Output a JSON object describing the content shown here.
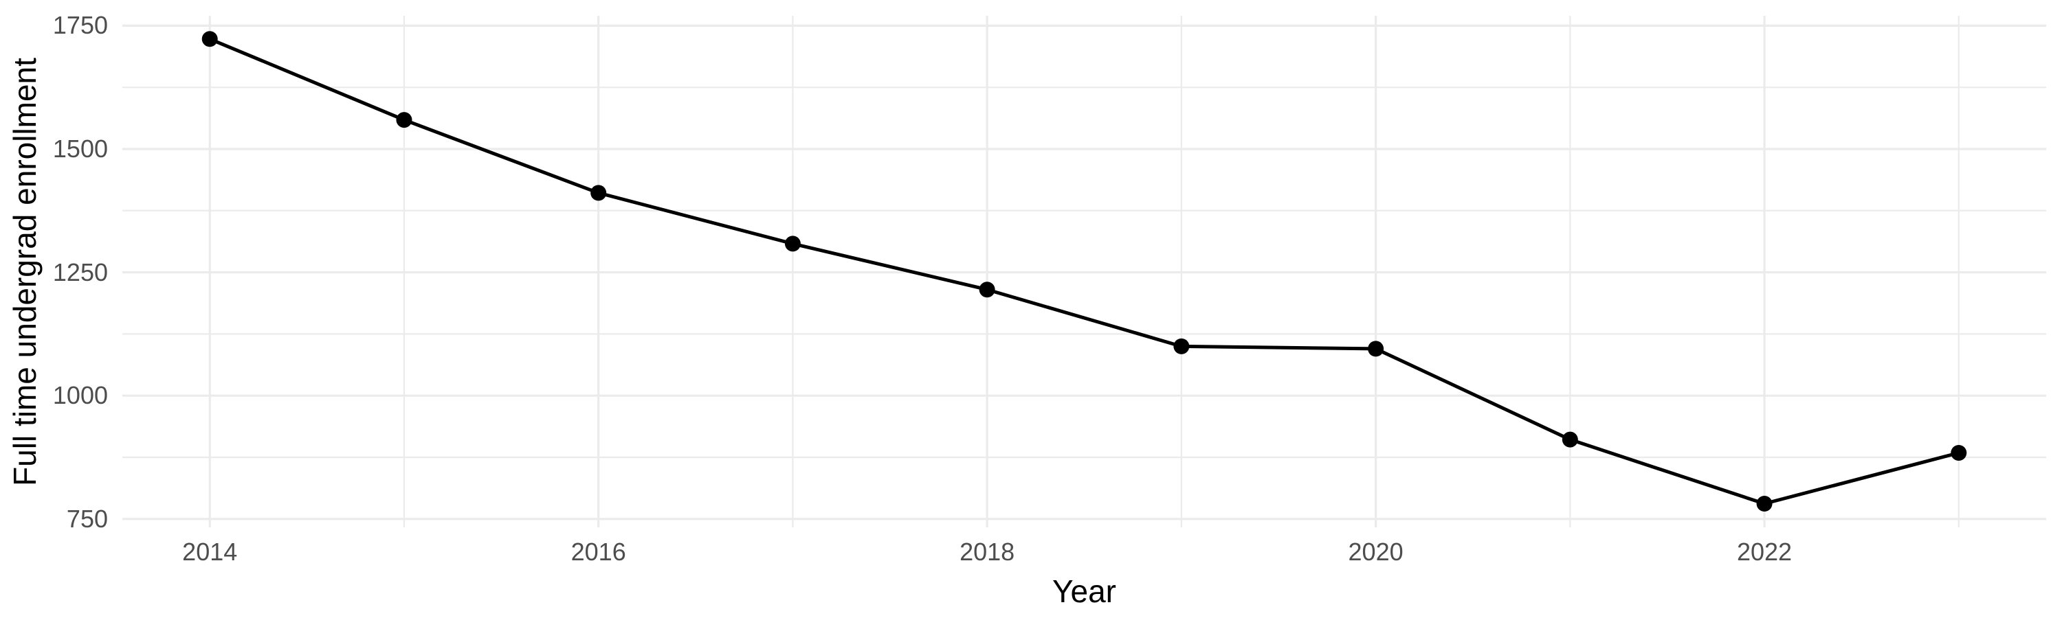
{
  "chart_data": {
    "type": "line",
    "title": "",
    "xlabel": "Year",
    "ylabel": "Full time undergrad enrollment",
    "series": [
      {
        "name": "Full time undergrad enrollment",
        "x": [
          2014,
          2015,
          2016,
          2017,
          2018,
          2019,
          2020,
          2021,
          2022,
          2023
        ],
        "values": [
          1723,
          1559,
          1411,
          1308,
          1215,
          1100,
          1095,
          911,
          781,
          884
        ]
      }
    ],
    "x_major_ticks": [
      2014,
      2016,
      2018,
      2020,
      2022
    ],
    "x_minor_gridlines": [
      2015,
      2017,
      2019,
      2021,
      2023
    ],
    "y_major_ticks": [
      750,
      1000,
      1250,
      1500,
      1750
    ],
    "y_minor_gridlines": [
      875,
      1125,
      1375,
      1625
    ],
    "xlim": [
      2013.55,
      2023.45
    ],
    "ylim": [
      733,
      1770
    ],
    "grid": true,
    "legend": false,
    "colors": {
      "line": "#000000",
      "point": "#000000",
      "grid_major": "#ebebeb",
      "grid_minor": "#ebebeb",
      "tick_label": "#4d4d4d",
      "axis_title": "#000000",
      "background": "#ffffff"
    }
  }
}
